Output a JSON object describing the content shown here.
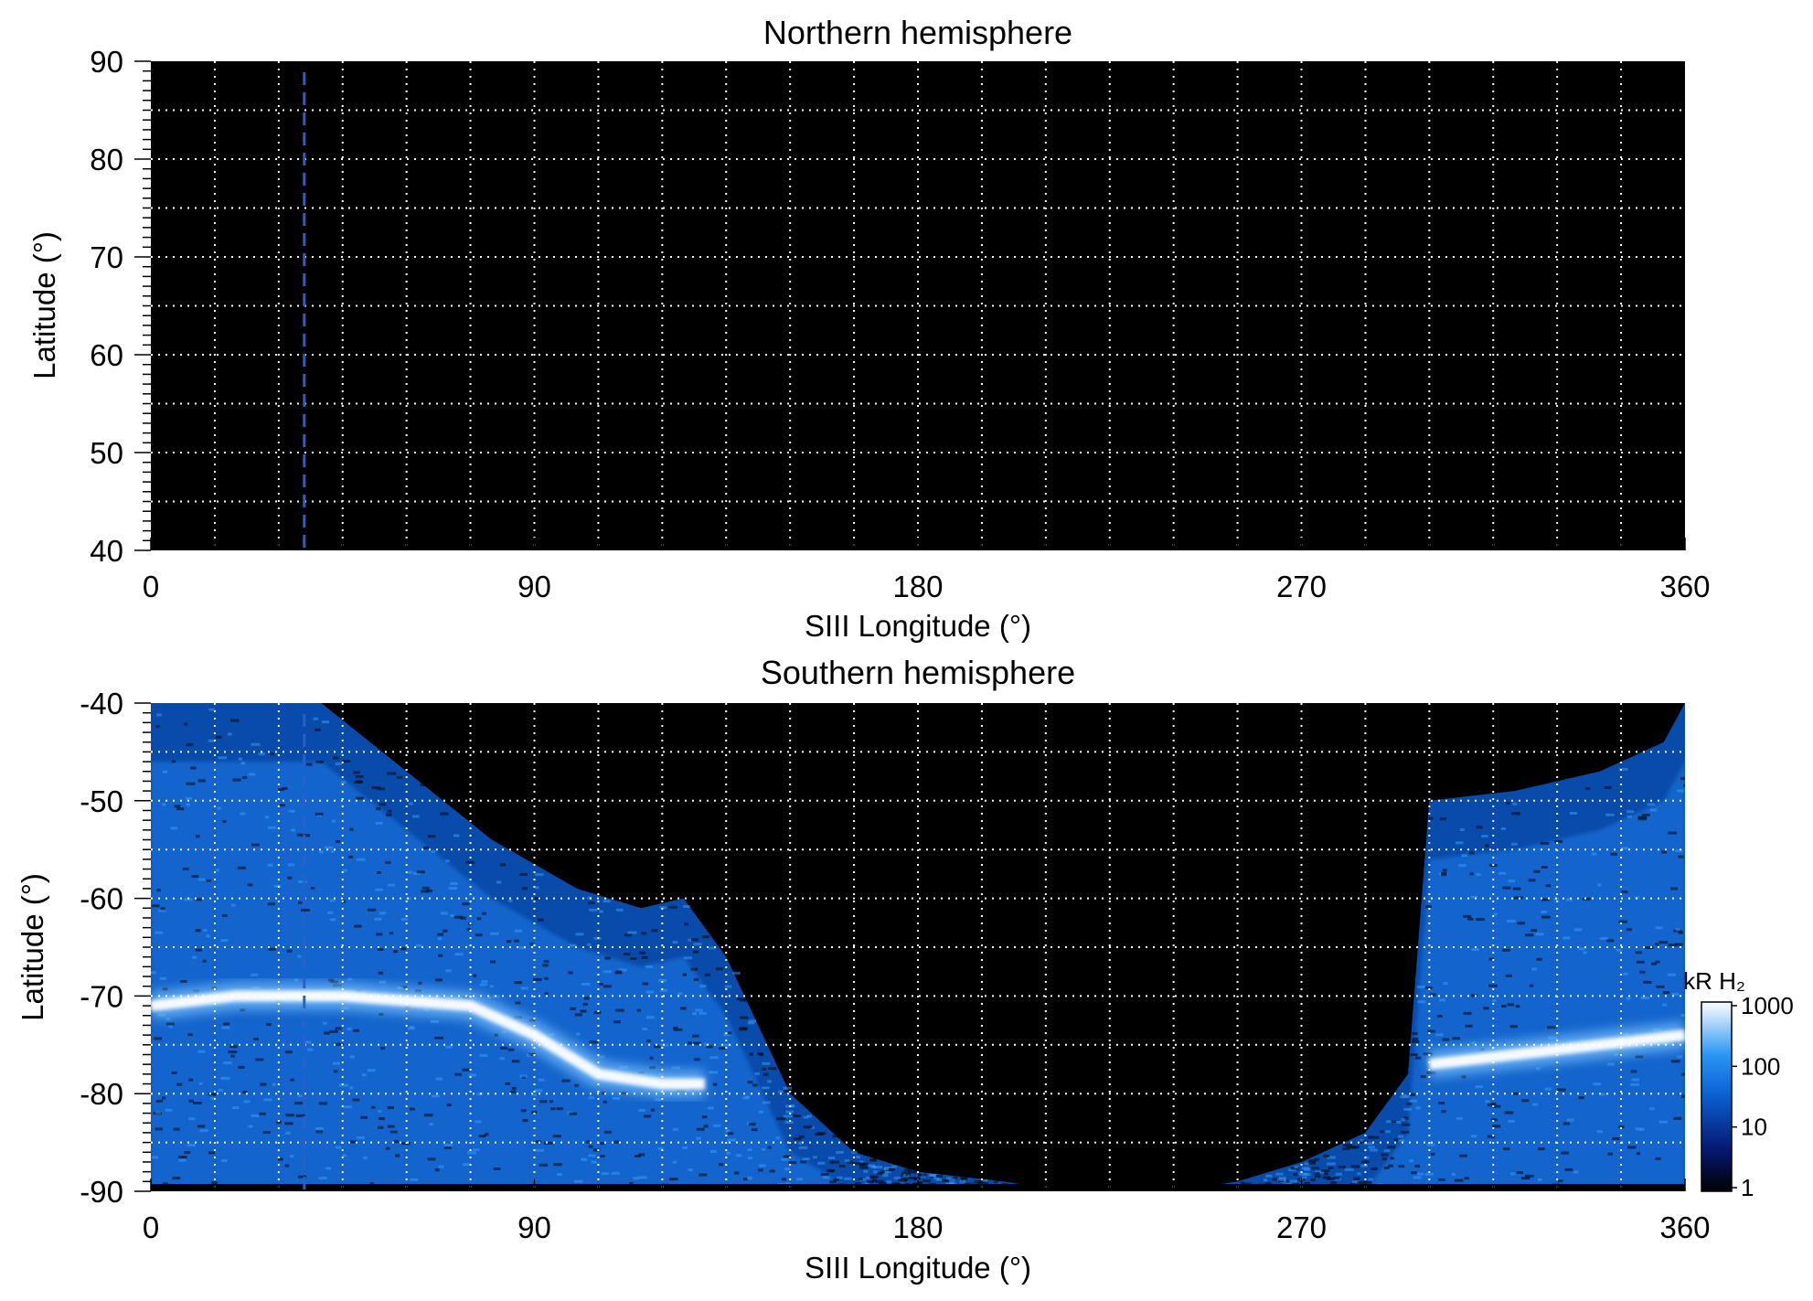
{
  "colors": {
    "plot_background": "#000000",
    "grid": "#ffffff",
    "auroral_low": "#0a1a6e",
    "auroral_mid": "#0a6ad8",
    "auroral_high": "#ffffff",
    "marker_line": "#2a5ec8"
  },
  "chart_data": [
    {
      "type": "heatmap",
      "title": "Northern hemisphere",
      "xlabel": "SIII Longitude (°)",
      "ylabel": "Latitude (°)",
      "xlim": [
        0,
        360
      ],
      "ylim": [
        40,
        90
      ],
      "x_ticks": [
        "0",
        "90",
        "180",
        "270",
        "360"
      ],
      "x_tick_values": [
        0,
        90,
        180,
        270,
        360
      ],
      "y_ticks": [
        "40",
        "50",
        "60",
        "70",
        "80",
        "90"
      ],
      "y_tick_values": [
        40,
        50,
        60,
        70,
        80,
        90
      ],
      "grid": true,
      "grid_x_step": 15,
      "grid_y_step": 5,
      "marker_longitude": 36,
      "emission": "none visible"
    },
    {
      "type": "heatmap",
      "title": "Southern hemisphere",
      "xlabel": "SIII Longitude (°)",
      "ylabel": "Latitude (°)",
      "xlim": [
        0,
        360
      ],
      "ylim": [
        -90,
        -40
      ],
      "x_ticks": [
        "0",
        "90",
        "180",
        "270",
        "360"
      ],
      "x_tick_values": [
        0,
        90,
        180,
        270,
        360
      ],
      "y_ticks": [
        "-40",
        "-50",
        "-60",
        "-70",
        "-80",
        "-90"
      ],
      "y_tick_values": [
        -40,
        -50,
        -60,
        -70,
        -80,
        -90
      ],
      "grid": true,
      "grid_x_step": 15,
      "grid_y_step": 5,
      "marker_longitude": 36,
      "main_oval": {
        "longitude": [
          0,
          20,
          45,
          75,
          90,
          105,
          120,
          130,
          300,
          320,
          340,
          360
        ],
        "latitude": [
          -71,
          -70,
          -70,
          -71,
          -74,
          -78,
          -79,
          -79,
          -77,
          -76,
          -75,
          -74
        ]
      },
      "emission_edge": {
        "longitude": [
          0,
          40,
          60,
          80,
          100,
          115,
          125,
          135,
          150,
          165,
          180,
          200,
          215,
          240,
          255,
          270,
          285,
          295,
          300,
          320,
          340,
          355,
          360
        ],
        "latitude": [
          -40,
          -40,
          -47,
          -54,
          -59,
          -61,
          -60,
          -66,
          -80,
          -86,
          -88,
          -89,
          -90,
          -90,
          -89,
          -87,
          -84,
          -78,
          -50,
          -49,
          -47,
          -44,
          -40
        ]
      },
      "colorbar": {
        "label": "kR H₂",
        "scale": "log",
        "ticks": [
          "1",
          "10",
          "100",
          "1000"
        ],
        "tick_values": [
          1,
          10,
          100,
          1000
        ]
      }
    }
  ]
}
